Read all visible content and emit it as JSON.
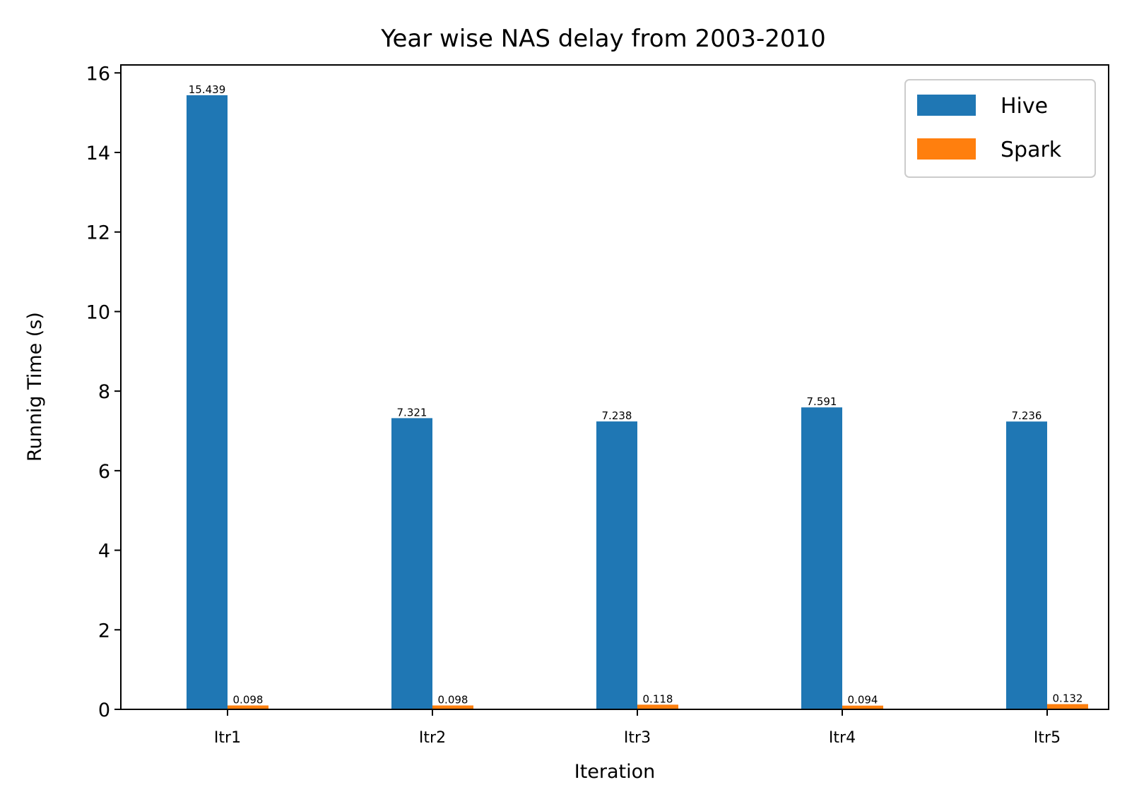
{
  "chart_data": {
    "type": "bar",
    "title": "Year wise NAS delay from 2003-2010",
    "xlabel": "Iteration",
    "ylabel": "Runnig Time (s)",
    "categories": [
      "Itr1",
      "Itr2",
      "Itr3",
      "Itr4",
      "Itr5"
    ],
    "series": [
      {
        "name": "Hive",
        "color": "#1f77b4",
        "values": [
          15.439,
          7.321,
          7.238,
          7.591,
          7.236
        ]
      },
      {
        "name": "Spark",
        "color": "#ff7f0e",
        "values": [
          0.098,
          0.098,
          0.118,
          0.094,
          0.132
        ]
      }
    ],
    "ylim": [
      0,
      16.2
    ],
    "yticks": [
      0,
      2,
      4,
      6,
      8,
      10,
      12,
      14,
      16
    ],
    "grid": false,
    "legend_position": "top-right"
  }
}
